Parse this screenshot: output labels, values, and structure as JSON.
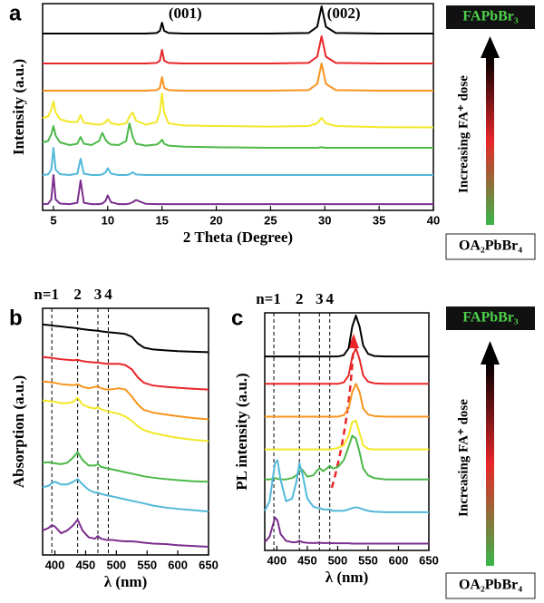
{
  "chart_data": [
    {
      "type": "line",
      "label": "a",
      "xlabel": "2 Theta (Degree)",
      "ylabel": "Intensity (a.u.)",
      "xlim": [
        4,
        40
      ],
      "ylim": [
        0,
        7.6
      ],
      "xticks": [
        5,
        10,
        15,
        20,
        25,
        30,
        35,
        40
      ],
      "x": [
        4,
        4.5,
        4.8,
        5,
        5.2,
        5.6,
        6.5,
        7.2,
        7.5,
        7.8,
        8.5,
        9.2,
        9.5,
        9.8,
        10,
        10.3,
        11,
        11.7,
        12,
        12.3,
        12.6,
        13.5,
        14.5,
        14.8,
        15,
        15.2,
        15.6,
        17,
        20,
        25,
        28.5,
        29.3,
        29.7,
        30.1,
        31,
        35,
        40
      ],
      "series": [
        {
          "color": "#000000",
          "values": [
            6.5,
            6.5,
            6.5,
            6.5,
            6.5,
            6.5,
            6.5,
            6.5,
            6.5,
            6.5,
            6.5,
            6.5,
            6.5,
            6.5,
            6.5,
            6.5,
            6.5,
            6.5,
            6.5,
            6.5,
            6.5,
            6.5,
            6.52,
            6.6,
            6.9,
            6.6,
            6.52,
            6.5,
            6.5,
            6.5,
            6.52,
            6.75,
            7.5,
            6.75,
            6.52,
            6.5,
            6.5
          ]
        },
        {
          "color": "#e8262a",
          "values": [
            5.4,
            5.4,
            5.4,
            5.4,
            5.4,
            5.4,
            5.4,
            5.4,
            5.4,
            5.4,
            5.4,
            5.4,
            5.4,
            5.4,
            5.4,
            5.4,
            5.4,
            5.4,
            5.4,
            5.4,
            5.4,
            5.4,
            5.42,
            5.5,
            5.9,
            5.5,
            5.42,
            5.4,
            5.4,
            5.4,
            5.42,
            5.65,
            6.4,
            5.65,
            5.42,
            5.4,
            5.4
          ]
        },
        {
          "color": "#f7941d",
          "values": [
            4.4,
            4.4,
            4.4,
            4.4,
            4.4,
            4.4,
            4.4,
            4.4,
            4.4,
            4.4,
            4.4,
            4.4,
            4.4,
            4.4,
            4.4,
            4.4,
            4.4,
            4.4,
            4.4,
            4.4,
            4.4,
            4.4,
            4.42,
            4.5,
            4.9,
            4.5,
            4.42,
            4.4,
            4.4,
            4.4,
            4.42,
            4.65,
            5.4,
            4.65,
            4.42,
            4.4,
            4.4
          ]
        },
        {
          "color": "#f2e829",
          "values": [
            3.4,
            3.45,
            3.7,
            4.0,
            3.6,
            3.35,
            3.25,
            3.25,
            3.5,
            3.22,
            3.18,
            3.15,
            3.17,
            3.25,
            3.35,
            3.2,
            3.15,
            3.2,
            3.45,
            3.6,
            3.3,
            3.15,
            3.25,
            3.6,
            4.3,
            3.6,
            3.2,
            3.12,
            3.1,
            3.08,
            3.1,
            3.2,
            3.4,
            3.2,
            3.1,
            3.06,
            3.05
          ]
        },
        {
          "color": "#4cb848",
          "values": [
            2.5,
            2.55,
            2.8,
            3.1,
            2.75,
            2.5,
            2.4,
            2.45,
            2.7,
            2.45,
            2.4,
            2.55,
            2.85,
            2.6,
            2.5,
            2.42,
            2.4,
            2.55,
            3.2,
            2.7,
            2.45,
            2.38,
            2.42,
            2.5,
            2.6,
            2.45,
            2.38,
            2.34,
            2.32,
            2.3,
            2.3,
            2.3,
            2.32,
            2.3,
            2.3,
            2.3,
            2.3
          ]
        },
        {
          "color": "#52b8d9",
          "values": [
            1.3,
            1.32,
            1.5,
            2.3,
            1.5,
            1.33,
            1.3,
            1.35,
            1.9,
            1.35,
            1.3,
            1.3,
            1.32,
            1.4,
            1.55,
            1.35,
            1.3,
            1.3,
            1.32,
            1.4,
            1.32,
            1.3,
            1.3,
            1.3,
            1.3,
            1.3,
            1.3,
            1.3,
            1.3,
            1.3,
            1.3,
            1.3,
            1.3,
            1.3,
            1.3,
            1.3,
            1.3
          ]
        },
        {
          "color": "#7b2d8e",
          "values": [
            0.23,
            0.24,
            0.4,
            1.3,
            0.4,
            0.25,
            0.23,
            0.28,
            1.1,
            0.28,
            0.23,
            0.23,
            0.25,
            0.35,
            0.55,
            0.3,
            0.23,
            0.23,
            0.25,
            0.3,
            0.38,
            0.24,
            0.23,
            0.23,
            0.23,
            0.23,
            0.23,
            0.23,
            0.23,
            0.23,
            0.23,
            0.23,
            0.23,
            0.23,
            0.23,
            0.23,
            0.23
          ]
        }
      ],
      "annotations": [
        {
          "x": 15.6,
          "y": 7.2,
          "text": "(001)"
        },
        {
          "x": 30.2,
          "y": 7.2,
          "text": "(002)"
        }
      ]
    },
    {
      "type": "line",
      "label": "b",
      "xlabel": "λ (nm)",
      "ylabel": "Absorption (a.u.)",
      "xlim": [
        380,
        650
      ],
      "ylim": [
        0,
        9.1
      ],
      "xticks": [
        400,
        450,
        500,
        550,
        600,
        650
      ],
      "markers": [
        395,
        437,
        470,
        487
      ],
      "marker_labels": [
        "n=1",
        "2",
        "3",
        "4"
      ],
      "x": [
        380,
        390,
        395,
        400,
        410,
        420,
        430,
        437,
        445,
        455,
        465,
        470,
        475,
        485,
        495,
        505,
        515,
        525,
        535,
        545,
        560,
        580,
        600,
        625,
        650
      ],
      "series": [
        {
          "color": "#000000",
          "values": [
            8.5,
            8.48,
            8.47,
            8.45,
            8.43,
            8.4,
            8.38,
            8.36,
            8.33,
            8.3,
            8.28,
            8.27,
            8.25,
            8.22,
            8.2,
            8.18,
            8.15,
            8.05,
            7.8,
            7.65,
            7.58,
            7.55,
            7.52,
            7.5,
            7.48
          ]
        },
        {
          "color": "#e8262a",
          "values": [
            7.3,
            7.28,
            7.27,
            7.25,
            7.22,
            7.2,
            7.18,
            7.2,
            7.15,
            7.12,
            7.1,
            7.1,
            7.08,
            7.05,
            7.05,
            7.05,
            7.0,
            6.85,
            6.55,
            6.35,
            6.25,
            6.2,
            6.17,
            6.13,
            6.1
          ]
        },
        {
          "color": "#f7941d",
          "values": [
            6.4,
            6.38,
            6.36,
            6.35,
            6.3,
            6.28,
            6.26,
            6.3,
            6.2,
            6.15,
            6.2,
            6.22,
            6.15,
            6.1,
            6.12,
            6.15,
            6.1,
            5.85,
            5.55,
            5.35,
            5.25,
            5.18,
            5.12,
            5.05,
            5.0
          ]
        },
        {
          "color": "#f2e829",
          "values": [
            5.7,
            5.68,
            5.66,
            5.65,
            5.6,
            5.6,
            5.65,
            5.8,
            5.55,
            5.45,
            5.4,
            5.45,
            5.38,
            5.3,
            5.25,
            5.2,
            5.1,
            4.95,
            4.75,
            4.6,
            4.5,
            4.4,
            4.32,
            4.25,
            4.2
          ]
        },
        {
          "color": "#4cb848",
          "values": [
            3.4,
            3.42,
            3.4,
            3.38,
            3.35,
            3.4,
            3.6,
            3.8,
            3.5,
            3.3,
            3.3,
            3.35,
            3.25,
            3.2,
            3.15,
            3.1,
            3.05,
            3.0,
            2.95,
            2.9,
            2.85,
            2.8,
            2.76,
            2.72,
            2.7
          ]
        },
        {
          "color": "#52b8d9",
          "values": [
            2.5,
            2.55,
            2.65,
            2.7,
            2.6,
            2.6,
            2.7,
            2.8,
            2.6,
            2.4,
            2.3,
            2.3,
            2.25,
            2.2,
            2.15,
            2.1,
            2.05,
            2.0,
            1.95,
            1.9,
            1.82,
            1.75,
            1.7,
            1.65,
            1.6
          ]
        },
        {
          "color": "#7b2d8e",
          "values": [
            0.9,
            1.0,
            1.1,
            1.05,
            0.8,
            0.9,
            1.1,
            1.3,
            0.9,
            0.65,
            0.6,
            0.7,
            0.6,
            0.55,
            0.55,
            0.52,
            0.5,
            0.5,
            0.48,
            0.45,
            0.42,
            0.4,
            0.36,
            0.33,
            0.3
          ]
        }
      ]
    },
    {
      "type": "line",
      "label": "c",
      "xlabel": "λ (nm)",
      "ylabel": "PL intensity (a.u.)",
      "xlim": [
        380,
        650
      ],
      "ylim": [
        0,
        8.7
      ],
      "xticks": [
        400,
        450,
        500,
        550,
        600,
        650
      ],
      "markers": [
        395,
        437,
        470,
        487
      ],
      "marker_labels": [
        "n=1",
        "2",
        "3",
        "4"
      ],
      "x": [
        380,
        388,
        393,
        397,
        401,
        406,
        415,
        425,
        432,
        437,
        442,
        450,
        460,
        467,
        471,
        476,
        482,
        487,
        492,
        500,
        510,
        518,
        524,
        530,
        536,
        542,
        550,
        560,
        580,
        610,
        650
      ],
      "series": [
        {
          "color": "#000000",
          "values": [
            7.1,
            7.1,
            7.1,
            7.1,
            7.1,
            7.1,
            7.1,
            7.1,
            7.1,
            7.1,
            7.1,
            7.1,
            7.1,
            7.1,
            7.1,
            7.1,
            7.1,
            7.1,
            7.1,
            7.1,
            7.15,
            7.4,
            8.2,
            8.6,
            8.2,
            7.5,
            7.2,
            7.12,
            7.1,
            7.1,
            7.1
          ]
        },
        {
          "color": "#e8262a",
          "values": [
            6.1,
            6.1,
            6.1,
            6.1,
            6.1,
            6.1,
            6.1,
            6.1,
            6.1,
            6.1,
            6.1,
            6.1,
            6.1,
            6.1,
            6.1,
            6.1,
            6.1,
            6.1,
            6.1,
            6.1,
            6.15,
            6.4,
            7.1,
            7.4,
            7.0,
            6.4,
            6.18,
            6.12,
            6.1,
            6.1,
            6.1
          ]
        },
        {
          "color": "#f7941d",
          "values": [
            4.9,
            4.9,
            4.9,
            4.9,
            4.9,
            4.9,
            4.9,
            4.9,
            4.9,
            4.9,
            4.9,
            4.9,
            4.9,
            4.9,
            4.9,
            4.9,
            4.9,
            4.9,
            4.9,
            4.9,
            4.95,
            5.2,
            5.8,
            6.1,
            5.8,
            5.2,
            4.98,
            4.92,
            4.9,
            4.9,
            4.9
          ]
        },
        {
          "color": "#f2e829",
          "values": [
            3.7,
            3.7,
            3.7,
            3.7,
            3.7,
            3.7,
            3.7,
            3.7,
            3.7,
            3.7,
            3.7,
            3.7,
            3.7,
            3.7,
            3.7,
            3.7,
            3.7,
            3.7,
            3.72,
            3.75,
            3.85,
            4.2,
            4.7,
            4.75,
            4.3,
            3.85,
            3.72,
            3.7,
            3.7,
            3.7,
            3.7
          ]
        },
        {
          "color": "#4cb848",
          "values": [
            2.6,
            2.6,
            2.62,
            2.65,
            2.62,
            2.6,
            2.6,
            2.65,
            2.75,
            2.9,
            2.95,
            2.7,
            2.75,
            2.95,
            3.0,
            2.9,
            3.0,
            3.1,
            3.0,
            3.05,
            3.3,
            3.8,
            4.2,
            4.1,
            3.6,
            3.0,
            2.75,
            2.65,
            2.6,
            2.6,
            2.6
          ]
        },
        {
          "color": "#52b8d9",
          "values": [
            1.45,
            1.8,
            2.6,
            3.2,
            3.3,
            2.6,
            1.8,
            1.9,
            2.5,
            3.2,
            2.8,
            1.9,
            1.6,
            1.55,
            1.55,
            1.5,
            1.5,
            1.5,
            1.45,
            1.45,
            1.45,
            1.5,
            1.55,
            1.58,
            1.55,
            1.5,
            1.45,
            1.42,
            1.4,
            1.4,
            1.4
          ]
        },
        {
          "color": "#7b2d8e",
          "values": [
            0.3,
            0.5,
            0.9,
            1.2,
            1.1,
            0.6,
            0.35,
            0.3,
            0.3,
            0.35,
            0.3,
            0.28,
            0.27,
            0.28,
            0.28,
            0.27,
            0.27,
            0.27,
            0.26,
            0.26,
            0.26,
            0.26,
            0.25,
            0.25,
            0.25,
            0.25,
            0.25,
            0.25,
            0.25,
            0.25,
            0.25
          ]
        }
      ]
    }
  ],
  "dose_scales": [
    {
      "top": "FAPbBr₃",
      "arrow_label": "Increasing FA⁺ dose",
      "bottom": "OA₂PbBr₄"
    },
    {
      "top": "FAPbBr₃",
      "arrow_label": "Increasing FA⁺ dose",
      "bottom": "OA₂PbBr₄"
    }
  ]
}
